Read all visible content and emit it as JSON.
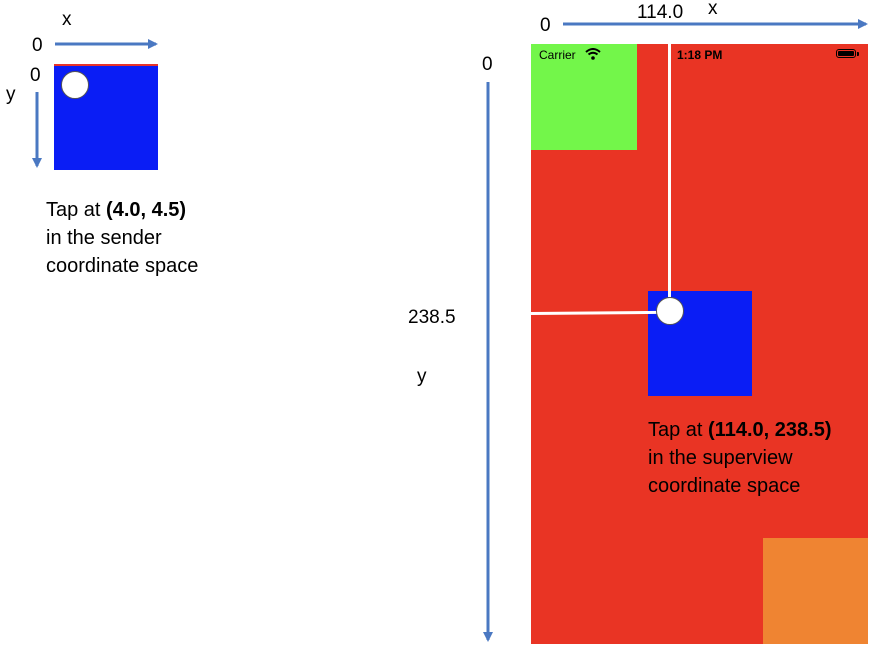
{
  "sender_panel": {
    "x_axis_label": "x",
    "y_axis_label": "y",
    "x_origin": "0",
    "y_origin": "0",
    "caption_prefix": "Tap at ",
    "caption_coords": "(4.0, 4.5)",
    "caption_line2": "in the sender",
    "caption_line3": "coordinate space"
  },
  "superview_panel": {
    "x_axis_label": "x",
    "y_axis_label": "y",
    "x_origin": "0",
    "y_origin": "0",
    "x_value": "114.0",
    "y_value": "238.5",
    "caption_prefix": "Tap at ",
    "caption_coords": "(114.0, 238.5)",
    "caption_line2": "in the superview",
    "caption_line3": "coordinate space"
  },
  "status_bar": {
    "carrier": "Carrier",
    "time": "1:18 PM"
  },
  "colors": {
    "superview_background": "#e93424",
    "green_view": "#73f64a",
    "orange_view": "#ef8432",
    "blue_view": "#0a1df5",
    "arrow": "#4a78c2"
  },
  "icons": {
    "wifi": "wifi-icon",
    "battery": "battery-icon"
  }
}
